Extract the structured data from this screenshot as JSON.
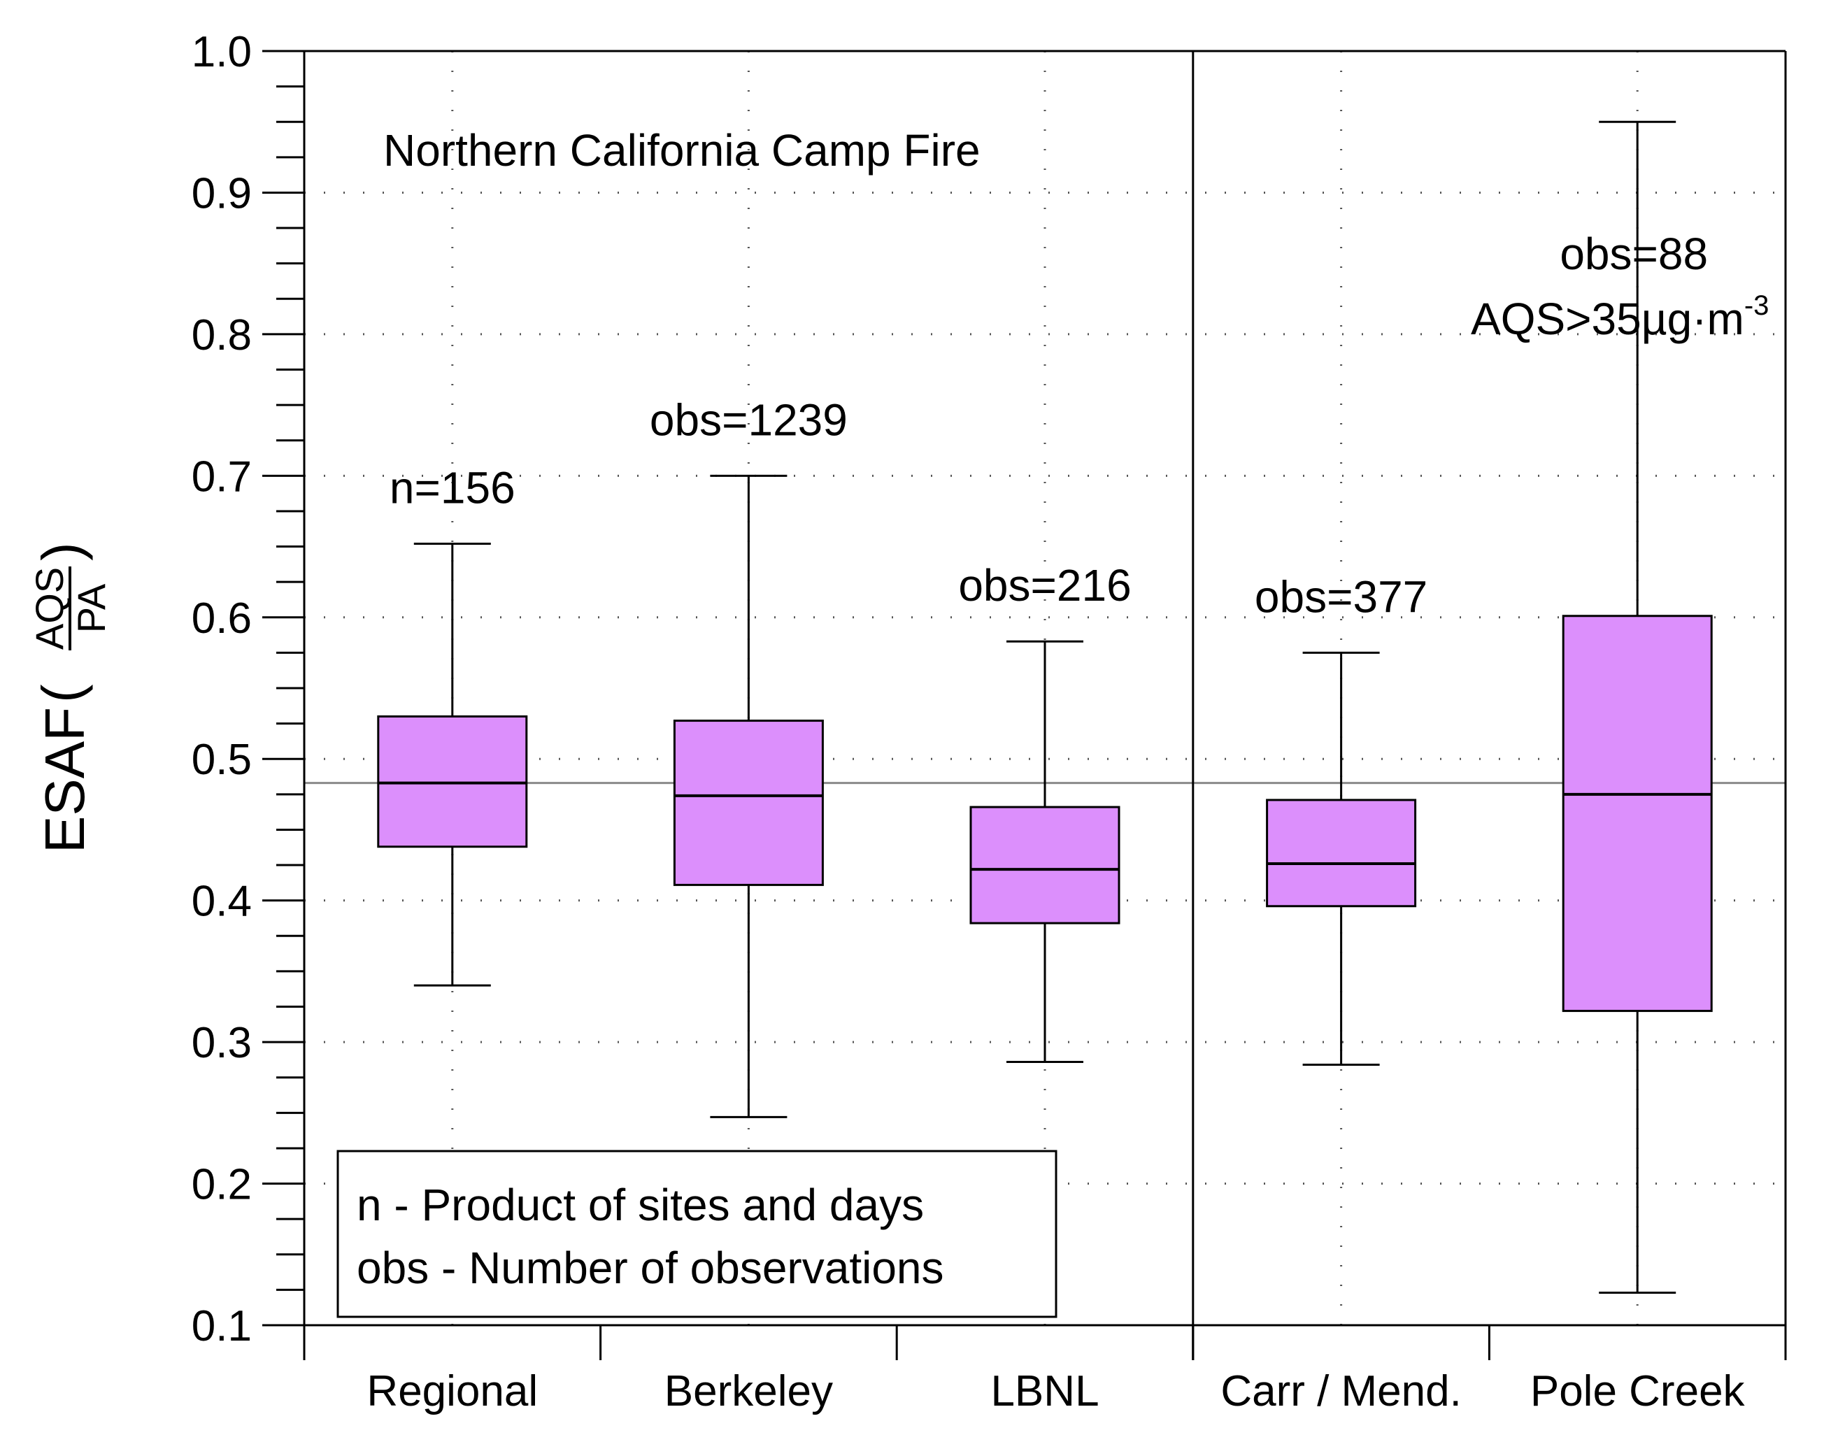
{
  "chart_data": {
    "type": "box",
    "title": "Northern California Camp Fire",
    "ylabel": "ESAF",
    "ylabel_fraction": {
      "numerator": "AQS",
      "denominator": "PA"
    },
    "ylim": [
      0.1,
      1.0
    ],
    "yticks": [
      "0.1",
      "0.2",
      "0.3",
      "0.4",
      "0.5",
      "0.6",
      "0.7",
      "0.8",
      "0.9",
      "1.0"
    ],
    "reference_line": 0.483,
    "categories": [
      "Regional",
      "Berkeley",
      "LBNL",
      "Carr / Mend.",
      "Pole Creek"
    ],
    "boxes": [
      {
        "name": "Regional",
        "whisker_low": 0.34,
        "q1": 0.438,
        "median": 0.483,
        "q3": 0.53,
        "whisker_high": 0.652,
        "label": "n=156"
      },
      {
        "name": "Berkeley",
        "whisker_low": 0.247,
        "q1": 0.411,
        "median": 0.474,
        "q3": 0.527,
        "whisker_high": 0.7,
        "label": "obs=1239"
      },
      {
        "name": "LBNL",
        "whisker_low": 0.286,
        "q1": 0.384,
        "median": 0.422,
        "q3": 0.466,
        "whisker_high": 0.583,
        "label": "obs=216"
      },
      {
        "name": "Carr / Mend.",
        "whisker_low": 0.284,
        "q1": 0.396,
        "median": 0.426,
        "q3": 0.471,
        "whisker_high": 0.575,
        "label": "obs=377"
      },
      {
        "name": "Pole Creek",
        "whisker_low": 0.123,
        "q1": 0.322,
        "median": 0.475,
        "q3": 0.601,
        "whisker_high": 0.95,
        "label": "obs=88",
        "label2": "AQS>35µg·m",
        "label2_sup": "-3"
      }
    ],
    "legend": {
      "position": "bottom-left",
      "lines": [
        "n - Product of sites and days",
        "obs - Number of observations"
      ]
    },
    "colors": {
      "box_fill": "#dc8ffc",
      "stroke": "#000000",
      "grid": "#555555",
      "ref_line": "#8a8a8a"
    }
  }
}
